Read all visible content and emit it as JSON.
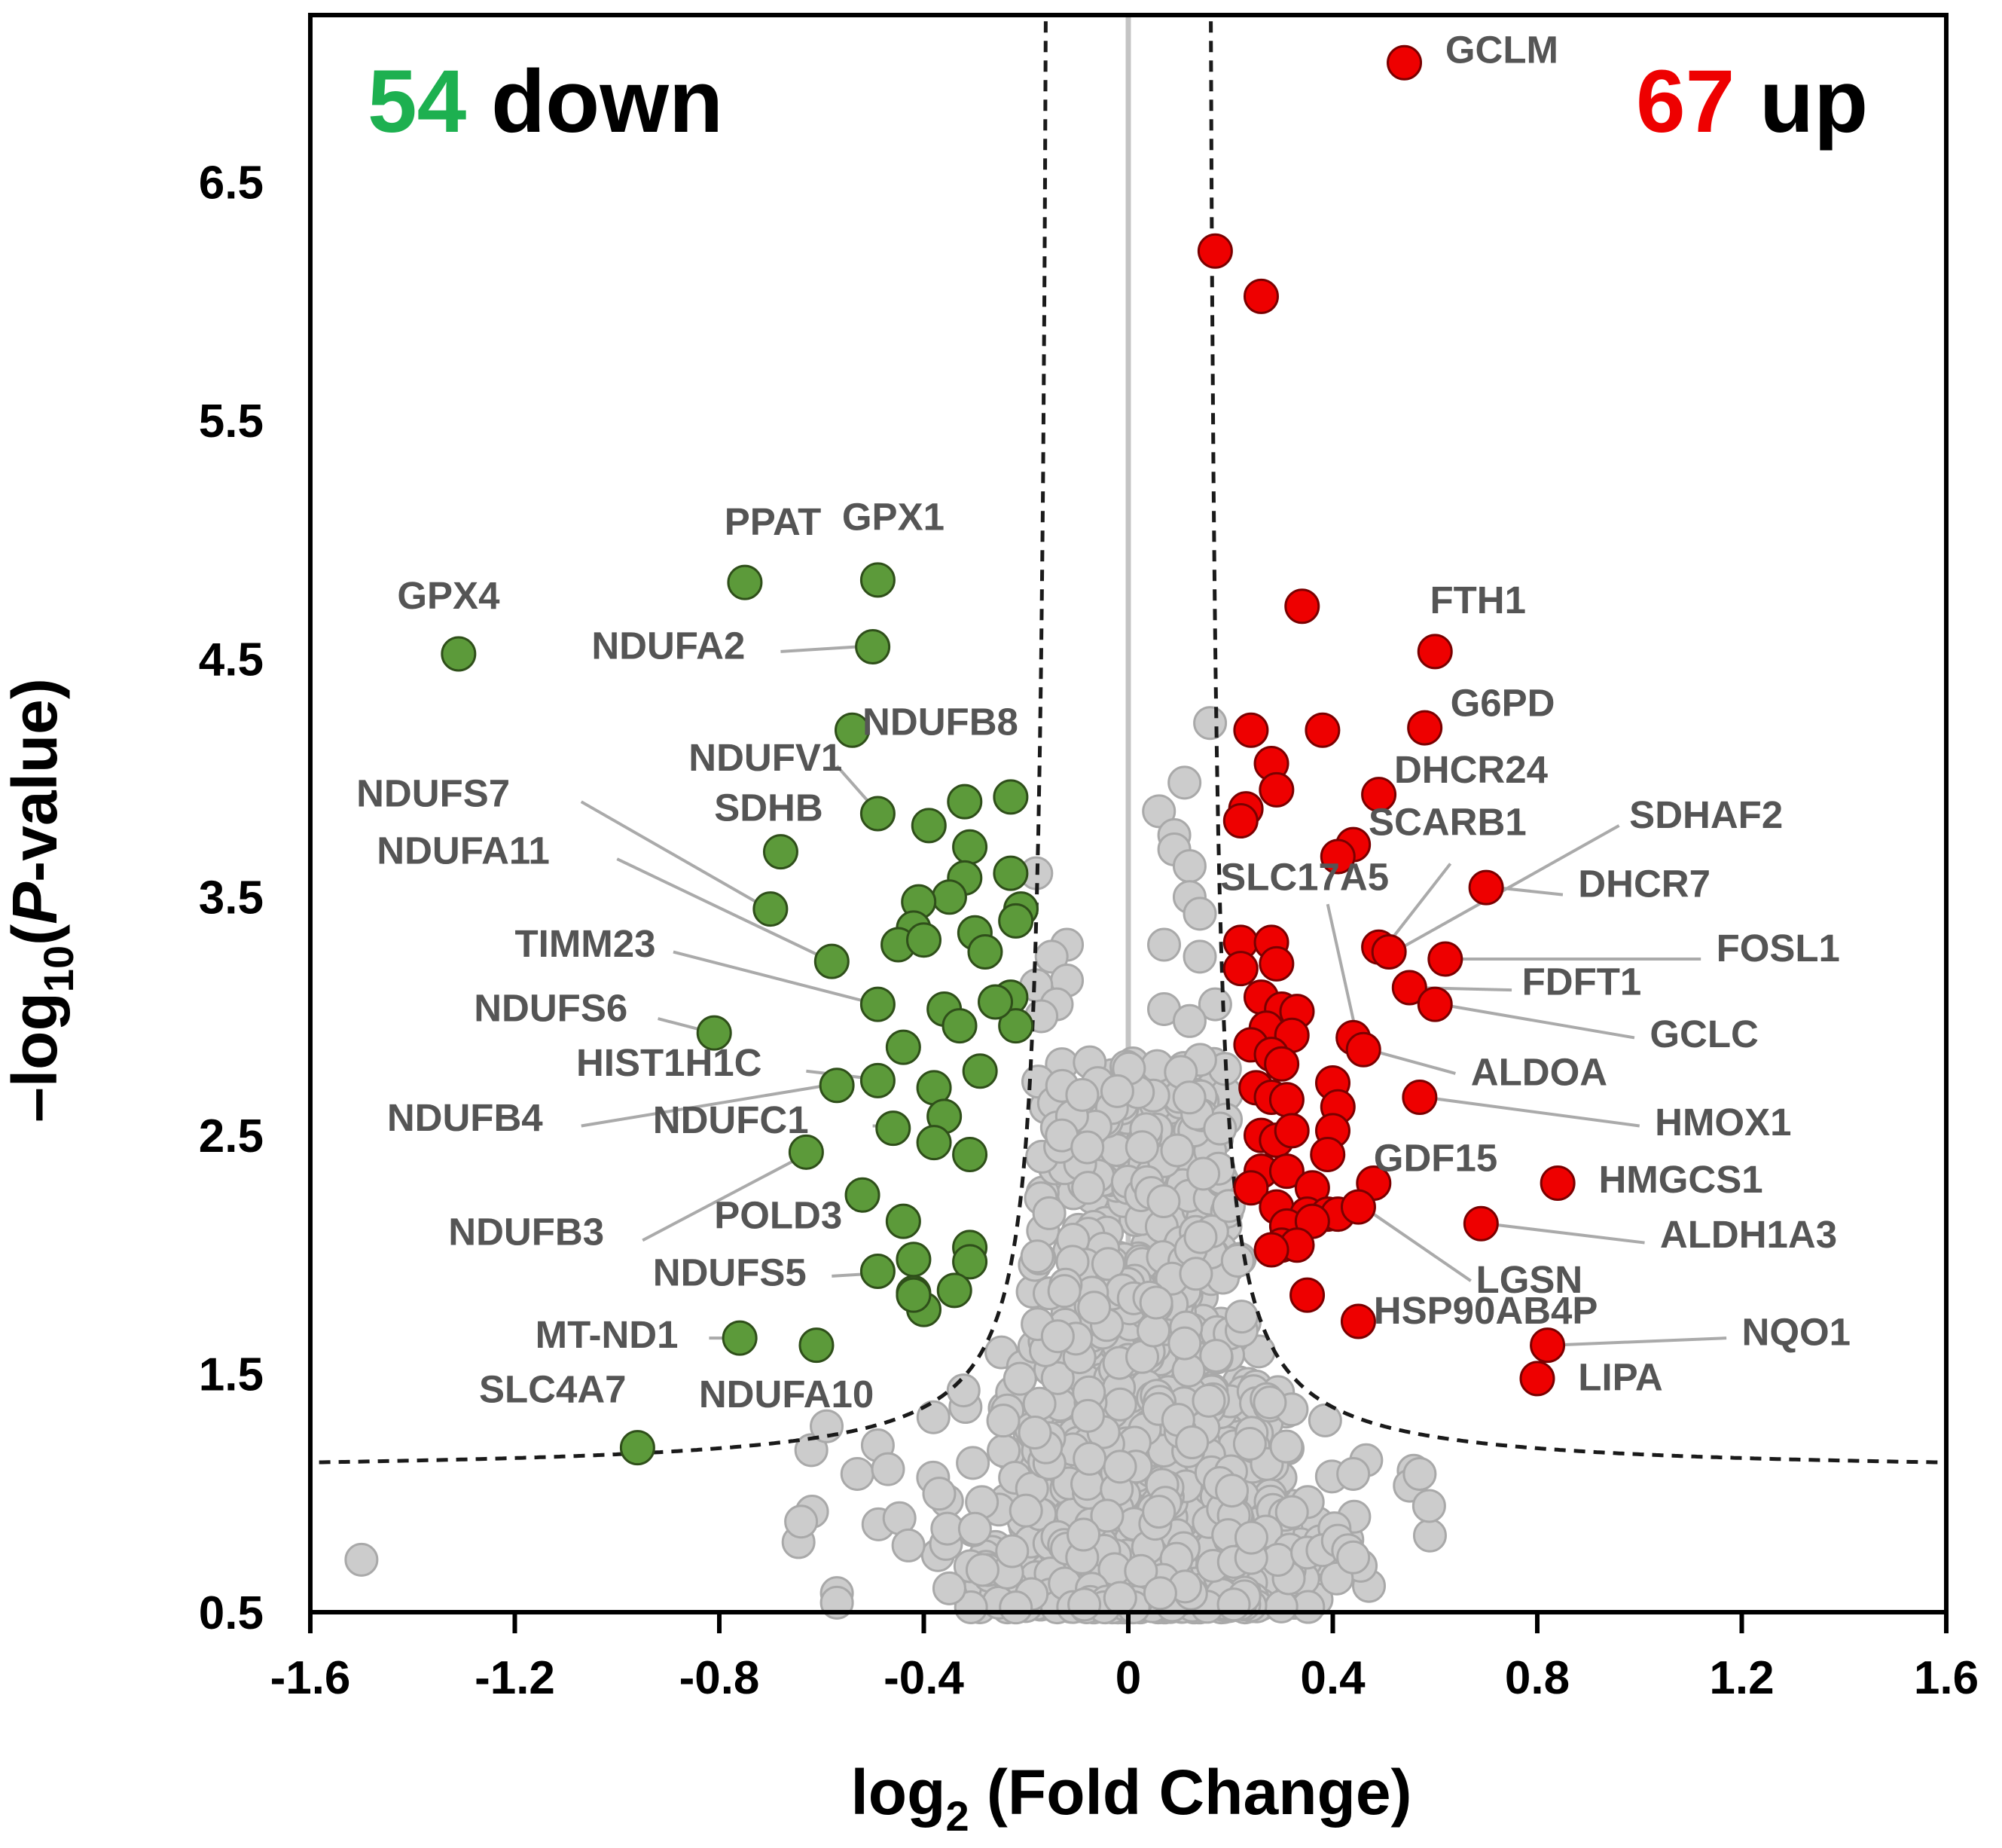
{
  "chart_data": {
    "type": "scatter",
    "title": "",
    "xlabel_prefix": "log",
    "xlabel_sub": "2",
    "xlabel_suffix": " (Fold Change)",
    "ylabel_prefix": "–log",
    "ylabel_sub": "10",
    "ylabel_open": "(",
    "ylabel_italic": "P",
    "ylabel_suffix": "-value)",
    "xlim": [
      -1.6,
      1.6
    ],
    "ylim": [
      0.5,
      7.2
    ],
    "x_ticks": [
      "-1.6",
      "-1.2",
      "-0.8",
      "-0.4",
      "0",
      "0.4",
      "0.8",
      "1.2",
      "1.6"
    ],
    "y_ticks": [
      "0.5",
      "1.5",
      "2.5",
      "3.5",
      "4.5",
      "5.5",
      "6.5"
    ],
    "threshold": {
      "x0": 0.15,
      "y0": 1.08,
      "k": 0.07
    },
    "colors": {
      "down": "#5c9a3a",
      "up": "#ee0000",
      "ns": "#cccccc",
      "down_text": "#1db050",
      "up_text": "#ee0000",
      "label": "#555555",
      "leader": "#aaaaaa",
      "zero_line": "#c4c4c4"
    },
    "counts": {
      "down_number": "54",
      "down_word": " down",
      "up_number": "67",
      "up_word": " up"
    },
    "down_points": [
      [
        -1.31,
        4.52
      ],
      [
        -0.75,
        4.82
      ],
      [
        -0.49,
        4.83
      ],
      [
        -0.5,
        4.55
      ],
      [
        -0.54,
        4.2
      ],
      [
        -0.49,
        3.85
      ],
      [
        -0.68,
        3.69
      ],
      [
        -0.7,
        3.45
      ],
      [
        -0.58,
        3.23
      ],
      [
        -0.49,
        3.05
      ],
      [
        -0.81,
        2.93
      ],
      [
        -0.49,
        2.73
      ],
      [
        -0.57,
        2.71
      ],
      [
        -0.46,
        2.53
      ],
      [
        -0.63,
        2.43
      ],
      [
        -0.52,
        2.25
      ],
      [
        -0.44,
        2.14
      ],
      [
        -0.49,
        1.93
      ],
      [
        -0.61,
        1.62
      ],
      [
        -0.76,
        1.65
      ],
      [
        -0.96,
        1.19
      ],
      [
        -0.32,
        3.9
      ],
      [
        -0.39,
        3.8
      ],
      [
        -0.31,
        3.71
      ],
      [
        -0.32,
        3.58
      ],
      [
        -0.35,
        3.5
      ],
      [
        -0.41,
        3.48
      ],
      [
        -0.23,
        3.92
      ],
      [
        -0.23,
        3.6
      ],
      [
        -0.21,
        3.45
      ],
      [
        -0.42,
        3.37
      ],
      [
        -0.45,
        3.3
      ],
      [
        -0.4,
        3.32
      ],
      [
        -0.3,
        3.35
      ],
      [
        -0.28,
        3.27
      ],
      [
        -0.22,
        3.4
      ],
      [
        -0.44,
        2.87
      ],
      [
        -0.36,
        3.03
      ],
      [
        -0.33,
        2.96
      ],
      [
        -0.23,
        3.08
      ],
      [
        -0.22,
        2.96
      ],
      [
        -0.38,
        2.7
      ],
      [
        -0.29,
        2.77
      ],
      [
        -0.36,
        2.58
      ],
      [
        -0.38,
        2.47
      ],
      [
        -0.31,
        2.42
      ],
      [
        -0.31,
        2.03
      ],
      [
        -0.31,
        1.97
      ],
      [
        -0.42,
        1.98
      ],
      [
        -0.42,
        1.84
      ],
      [
        -0.34,
        1.85
      ],
      [
        -0.4,
        1.77
      ],
      [
        -0.42,
        1.83
      ],
      [
        -0.26,
        3.06
      ]
    ],
    "up_points": [
      [
        0.54,
        7.0
      ],
      [
        0.17,
        6.21
      ],
      [
        0.26,
        6.02
      ],
      [
        0.34,
        4.72
      ],
      [
        0.6,
        4.53
      ],
      [
        0.58,
        4.21
      ],
      [
        0.24,
        4.2
      ],
      [
        0.38,
        4.2
      ],
      [
        0.28,
        4.06
      ],
      [
        0.29,
        3.95
      ],
      [
        0.49,
        3.93
      ],
      [
        0.23,
        3.87
      ],
      [
        0.22,
        3.82
      ],
      [
        0.44,
        3.72
      ],
      [
        0.41,
        3.67
      ],
      [
        0.7,
        3.54
      ],
      [
        0.49,
        3.29
      ],
      [
        0.51,
        3.27
      ],
      [
        0.62,
        3.24
      ],
      [
        0.55,
        3.12
      ],
      [
        0.6,
        3.05
      ],
      [
        0.44,
        2.91
      ],
      [
        0.46,
        2.86
      ],
      [
        0.57,
        2.66
      ],
      [
        0.84,
        2.3
      ],
      [
        0.48,
        2.3
      ],
      [
        0.69,
        2.13
      ],
      [
        0.8,
        1.48
      ],
      [
        0.82,
        1.62
      ],
      [
        0.45,
        1.72
      ],
      [
        0.35,
        1.83
      ],
      [
        0.22,
        3.31
      ],
      [
        0.22,
        3.2
      ],
      [
        0.28,
        3.31
      ],
      [
        0.29,
        3.22
      ],
      [
        0.26,
        3.08
      ],
      [
        0.3,
        3.03
      ],
      [
        0.33,
        3.02
      ],
      [
        0.27,
        2.95
      ],
      [
        0.32,
        2.92
      ],
      [
        0.24,
        2.88
      ],
      [
        0.28,
        2.84
      ],
      [
        0.3,
        2.8
      ],
      [
        0.25,
        2.7
      ],
      [
        0.28,
        2.66
      ],
      [
        0.31,
        2.65
      ],
      [
        0.4,
        2.72
      ],
      [
        0.41,
        2.62
      ],
      [
        0.26,
        2.5
      ],
      [
        0.29,
        2.48
      ],
      [
        0.32,
        2.52
      ],
      [
        0.4,
        2.52
      ],
      [
        0.39,
        2.42
      ],
      [
        0.26,
        2.35
      ],
      [
        0.31,
        2.35
      ],
      [
        0.36,
        2.28
      ],
      [
        0.24,
        2.28
      ],
      [
        0.29,
        2.2
      ],
      [
        0.35,
        2.17
      ],
      [
        0.39,
        2.17
      ],
      [
        0.41,
        2.17
      ],
      [
        0.45,
        2.2
      ],
      [
        0.31,
        2.12
      ],
      [
        0.36,
        2.14
      ],
      [
        0.3,
        2.04
      ],
      [
        0.33,
        2.04
      ],
      [
        0.28,
        2.02
      ]
    ],
    "ns_points": [
      [
        -1.5,
        0.72
      ],
      [
        -0.64,
        0.88
      ],
      [
        -0.57,
        0.58
      ],
      [
        -0.57,
        0.54
      ],
      [
        -0.62,
        1.18
      ],
      [
        -0.59,
        1.28
      ],
      [
        -0.53,
        1.08
      ],
      [
        -0.49,
        1.2
      ],
      [
        -0.47,
        1.1
      ],
      [
        -0.43,
        0.78
      ],
      [
        -0.35,
        0.6
      ],
      [
        -0.3,
        0.85
      ],
      [
        -0.22,
        0.52
      ],
      [
        -0.18,
        3.6
      ],
      [
        -0.12,
        3.3
      ],
      [
        -0.15,
        3.25
      ],
      [
        -0.12,
        3.15
      ],
      [
        -0.18,
        3.13
      ],
      [
        -0.14,
        3.05
      ],
      [
        -0.17,
        3.0
      ],
      [
        -0.11,
        2.58
      ],
      [
        -0.09,
        2.67
      ],
      [
        -0.13,
        2.5
      ],
      [
        -0.08,
        2.45
      ],
      [
        0.06,
        3.86
      ],
      [
        0.11,
        3.98
      ],
      [
        0.16,
        4.23
      ],
      [
        0.09,
        3.76
      ],
      [
        0.09,
        3.7
      ],
      [
        0.12,
        3.63
      ],
      [
        0.12,
        3.5
      ],
      [
        0.07,
        3.3
      ],
      [
        0.14,
        3.43
      ],
      [
        0.14,
        3.25
      ],
      [
        0.07,
        3.03
      ],
      [
        0.17,
        3.05
      ],
      [
        0.12,
        2.98
      ],
      [
        0.44,
        1.08
      ],
      [
        0.57,
        1.08
      ],
      [
        0.35,
        0.75
      ],
      [
        0.38,
        0.76
      ],
      [
        0.41,
        0.8
      ],
      [
        0.43,
        0.76
      ],
      [
        0.44,
        0.73
      ],
      [
        0.32,
        0.92
      ]
    ],
    "ns_cloud": {
      "count": 1150,
      "left_center": -0.05,
      "right_center": 0.13,
      "spread": 0.085,
      "tail_spread": 0.24
    },
    "labels": [
      {
        "text": "GCLM",
        "x": 0.62,
        "y": 7.0,
        "anchor": "start"
      },
      {
        "text": "PPAT",
        "x": -0.79,
        "y": 5.02,
        "anchor": "start"
      },
      {
        "text": "GPX1",
        "x": -0.56,
        "y": 5.04,
        "anchor": "start"
      },
      {
        "text": "GPX4",
        "x": -1.43,
        "y": 4.71,
        "anchor": "start"
      },
      {
        "text": "NDUFA2",
        "x": -1.05,
        "y": 4.5,
        "anchor": "start",
        "lx1": -0.68,
        "ly1": 4.53,
        "lx2": -0.53,
        "ly2": 4.55
      },
      {
        "text": "NDUFB8",
        "x": -0.52,
        "y": 4.18,
        "anchor": "start"
      },
      {
        "text": "NDUFV1",
        "x": -0.86,
        "y": 4.03,
        "anchor": "start",
        "lx1": -0.57,
        "ly1": 4.05,
        "lx2": -0.5,
        "ly2": 3.88
      },
      {
        "text": "SDHB",
        "x": -0.81,
        "y": 3.82,
        "anchor": "start"
      },
      {
        "text": "NDUFS7",
        "x": -1.51,
        "y": 3.88,
        "anchor": "start",
        "lx1": -1.07,
        "ly1": 3.9,
        "lx2": -0.72,
        "ly2": 3.47
      },
      {
        "text": "NDUFA11",
        "x": -1.47,
        "y": 3.64,
        "anchor": "start",
        "lx1": -1.0,
        "ly1": 3.66,
        "lx2": -0.6,
        "ly2": 3.25
      },
      {
        "text": "TIMM23",
        "x": -1.2,
        "y": 3.25,
        "anchor": "start",
        "lx1": -0.89,
        "ly1": 3.27,
        "lx2": -0.51,
        "ly2": 3.06
      },
      {
        "text": "NDUFS6",
        "x": -1.28,
        "y": 2.98,
        "anchor": "start",
        "lx1": -0.92,
        "ly1": 2.99,
        "lx2": -0.83,
        "ly2": 2.94
      },
      {
        "text": "HIST1H1C",
        "x": -1.08,
        "y": 2.75,
        "anchor": "start",
        "lx1": -0.63,
        "ly1": 2.77,
        "lx2": -0.51,
        "ly2": 2.74
      },
      {
        "text": "NDUFB4",
        "x": -1.45,
        "y": 2.52,
        "anchor": "start",
        "lx1": -1.07,
        "ly1": 2.54,
        "lx2": -0.59,
        "ly2": 2.71
      },
      {
        "text": "NDUFC1",
        "x": -0.93,
        "y": 2.51,
        "anchor": "start",
        "lx1": -0.5,
        "ly1": 2.54,
        "lx2": -0.47,
        "ly2": 2.54
      },
      {
        "text": "NDUFB3",
        "x": -1.33,
        "y": 2.04,
        "anchor": "start",
        "lx1": -0.95,
        "ly1": 2.06,
        "lx2": -0.64,
        "ly2": 2.41
      },
      {
        "text": "POLD3",
        "x": -0.81,
        "y": 2.11,
        "anchor": "start"
      },
      {
        "text": "NDUFS5",
        "x": -0.93,
        "y": 1.87,
        "anchor": "start",
        "lx1": -0.58,
        "ly1": 1.91,
        "lx2": -0.5,
        "ly2": 1.92
      },
      {
        "text": "MT-ND1",
        "x": -1.16,
        "y": 1.61,
        "anchor": "start",
        "lx1": -0.82,
        "ly1": 1.65,
        "lx2": -0.77,
        "ly2": 1.65
      },
      {
        "text": "SLC4A7",
        "x": -1.27,
        "y": 1.38,
        "anchor": "start"
      },
      {
        "text": "NDUFA10",
        "x": -0.84,
        "y": 1.36,
        "anchor": "start"
      },
      {
        "text": "FTH1",
        "x": 0.59,
        "y": 4.69,
        "anchor": "start"
      },
      {
        "text": "G6PD",
        "x": 0.63,
        "y": 4.26,
        "anchor": "start"
      },
      {
        "text": "DHCR24",
        "x": 0.52,
        "y": 3.98,
        "anchor": "start"
      },
      {
        "text": "SCARB1",
        "x": 0.47,
        "y": 3.76,
        "anchor": "start",
        "lx1": 0.63,
        "ly1": 3.64,
        "lx2": 0.51,
        "ly2": 3.31
      },
      {
        "text": "SDHAF2",
        "x": 0.98,
        "y": 3.79,
        "anchor": "start",
        "lx1": 0.96,
        "ly1": 3.8,
        "lx2": 0.52,
        "ly2": 3.27
      },
      {
        "text": "SLC17A5",
        "x": 0.18,
        "y": 3.53,
        "anchor": "start",
        "lx1": 0.39,
        "ly1": 3.47,
        "lx2": 0.45,
        "ly2": 2.89
      },
      {
        "text": "DHCR7",
        "x": 0.88,
        "y": 3.5,
        "anchor": "start",
        "lx1": 0.85,
        "ly1": 3.51,
        "lx2": 0.72,
        "ly2": 3.54
      },
      {
        "text": "FOSL1",
        "x": 1.15,
        "y": 3.23,
        "anchor": "start",
        "lx1": 1.12,
        "ly1": 3.24,
        "lx2": 0.63,
        "ly2": 3.24
      },
      {
        "text": "FDFT1",
        "x": 0.77,
        "y": 3.09,
        "anchor": "start",
        "lx1": 0.75,
        "ly1": 3.11,
        "lx2": 0.56,
        "ly2": 3.12
      },
      {
        "text": "GCLC",
        "x": 1.02,
        "y": 2.87,
        "anchor": "start",
        "lx1": 0.99,
        "ly1": 2.91,
        "lx2": 0.61,
        "ly2": 3.05
      },
      {
        "text": "ALDOA",
        "x": 0.67,
        "y": 2.71,
        "anchor": "start",
        "lx1": 0.64,
        "ly1": 2.76,
        "lx2": 0.47,
        "ly2": 2.86
      },
      {
        "text": "HMOX1",
        "x": 1.03,
        "y": 2.5,
        "anchor": "start",
        "lx1": 1.0,
        "ly1": 2.54,
        "lx2": 0.58,
        "ly2": 2.66
      },
      {
        "text": "GDF15",
        "x": 0.48,
        "y": 2.35,
        "anchor": "start"
      },
      {
        "text": "HMGCS1",
        "x": 0.92,
        "y": 2.26,
        "anchor": "start"
      },
      {
        "text": "ALDH1A3",
        "x": 1.04,
        "y": 2.03,
        "anchor": "start",
        "lx1": 1.01,
        "ly1": 2.05,
        "lx2": 0.7,
        "ly2": 2.13
      },
      {
        "text": "LGSN",
        "x": 0.68,
        "y": 1.84,
        "anchor": "start",
        "lx1": 0.67,
        "ly1": 1.89,
        "lx2": 0.48,
        "ly2": 2.17
      },
      {
        "text": "HSP90AB4P",
        "x": 0.48,
        "y": 1.71,
        "anchor": "start"
      },
      {
        "text": "NQO1",
        "x": 1.2,
        "y": 1.62,
        "anchor": "start",
        "lx1": 1.17,
        "ly1": 1.65,
        "lx2": 0.83,
        "ly2": 1.62
      },
      {
        "text": "LIPA",
        "x": 0.88,
        "y": 1.43,
        "anchor": "start"
      }
    ]
  }
}
